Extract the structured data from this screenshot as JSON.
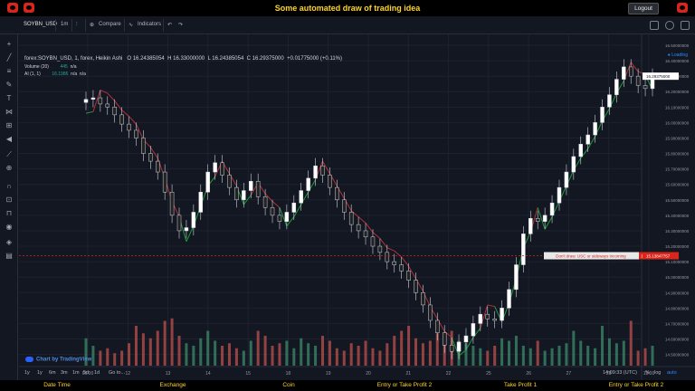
{
  "app": {
    "title": "Some automated draw of trading idea",
    "logout_label": "Logout"
  },
  "toolbar": {
    "symbol": "SOYBN_USD",
    "interval": "1m",
    "compare": "Compare",
    "indicators": "Indicators",
    "icons": [
      "candles-icon",
      "undo-icon",
      "redo-icon",
      "fullscreen-icon",
      "snapshot-icon",
      "settings-icon"
    ]
  },
  "legend": {
    "symbol_line": "forex:SOYBN_USD, 1, forex, Heikin Ashi",
    "O": "O 16.24385054",
    "H": "H 16.33000000",
    "L": "L 16.24385054",
    "C": "C 16.29375000",
    "change": "+0.01775000 (+0.11%)",
    "volume_label": "Volume (20)",
    "volume_value": "445",
    "volume_na": "n/a",
    "ai_label": "AI (1, 1)",
    "ai_value": "16.1986",
    "ai_na1": "n/a",
    "ai_na2": "n/a"
  },
  "chart_data": {
    "type": "candlestick",
    "price_axis": [
      "16.50000000",
      "16.40000000",
      "16.30000000",
      "16.20000000",
      "16.10000000",
      "16.00000000",
      "15.90000000",
      "15.80000000",
      "15.70000000",
      "15.60000000",
      "15.50000000",
      "15.40000000",
      "15.30000000",
      "15.20000000",
      "15.10000000",
      "15.00000000",
      "14.90000000",
      "14.80000000",
      "14.70000000",
      "14.60000000",
      "14.50000000"
    ],
    "ylim": [
      14.48,
      16.5
    ],
    "time_axis": [
      "06:00",
      "12",
      "13",
      "14",
      "15",
      "18",
      "19",
      "20",
      "21",
      "22",
      "25",
      "26",
      "27",
      "28",
      "13:00"
    ],
    "last_price_label": "16.29375000",
    "marker_price": 15.13847757,
    "marker_price_label": "15.13847757",
    "annotation_text": "Don't draw. USC or sideways incoming",
    "annotation_badge": "1",
    "closes": [
      16.15,
      16.16,
      16.12,
      16.1,
      16.05,
      15.99,
      15.95,
      15.9,
      15.8,
      15.75,
      15.68,
      15.55,
      15.4,
      15.3,
      15.32,
      15.42,
      15.55,
      15.68,
      15.74,
      15.66,
      15.58,
      15.5,
      15.56,
      15.62,
      15.52,
      15.45,
      15.4,
      15.36,
      15.42,
      15.48,
      15.56,
      15.64,
      15.72,
      15.66,
      15.58,
      15.5,
      15.42,
      15.34,
      15.3,
      15.26,
      15.2,
      15.16,
      15.1,
      15.08,
      15.04,
      14.98,
      14.9,
      14.82,
      14.72,
      14.64,
      14.56,
      14.52,
      14.58,
      14.62,
      14.7,
      14.76,
      14.73,
      14.72,
      14.8,
      14.92,
      15.08,
      15.28,
      15.38,
      15.36,
      15.4,
      15.48,
      15.58,
      15.68,
      15.78,
      15.86,
      15.92,
      16.0,
      16.1,
      16.18,
      16.28,
      16.36,
      16.3,
      16.24,
      16.22,
      16.3
    ],
    "series": [
      {
        "name": "Volume (20)",
        "values": [
          0.55,
          0.4,
          0.3,
          0.35,
          0.25,
          0.3,
          0.45,
          0.8,
          0.65,
          0.55,
          0.7,
          0.9,
          0.95,
          0.6,
          0.45,
          0.4,
          0.55,
          0.7,
          0.5,
          0.4,
          0.45,
          0.35,
          0.3,
          0.5,
          0.7,
          0.6,
          0.4,
          0.45,
          0.5,
          0.35,
          0.55,
          0.45,
          0.4,
          0.6,
          0.5,
          0.35,
          0.3,
          0.45,
          0.4,
          0.5,
          0.35,
          0.3,
          0.45,
          0.6,
          0.7,
          0.8,
          0.55,
          0.45,
          0.5,
          0.65,
          0.6,
          0.7,
          0.5,
          0.45,
          0.4,
          0.35,
          0.3,
          0.4,
          0.55,
          0.5,
          0.6,
          0.4,
          0.35,
          0.5,
          0.3,
          0.35,
          0.4,
          0.45,
          0.7,
          0.5,
          0.4,
          0.35,
          0.8,
          0.55,
          0.45,
          0.5,
          0.9,
          0.3,
          0.35,
          0.4
        ]
      }
    ]
  },
  "range": {
    "buttons": [
      "1y",
      "1y",
      "6m",
      "3m",
      "1m",
      "5d",
      "1d"
    ],
    "goto": "Go to...",
    "time": "14:09:33 (UTC)",
    "pct": "%",
    "log": "log",
    "auto": "auto"
  },
  "footer": {
    "columns": [
      "Date Time",
      "Exchange",
      "Coin",
      "Entry or Take Profit 2",
      "Take Profit 1",
      "Entry or Take Profit 2"
    ]
  },
  "colors": {
    "bull": "#ffffff",
    "bear": "#222222",
    "stop_red": "#b2323a",
    "stop_green": "#1e9b3c",
    "vol_red": "#c0504d",
    "vol_green": "#3c8c6a",
    "accent_yellow": "#ffd52a"
  }
}
